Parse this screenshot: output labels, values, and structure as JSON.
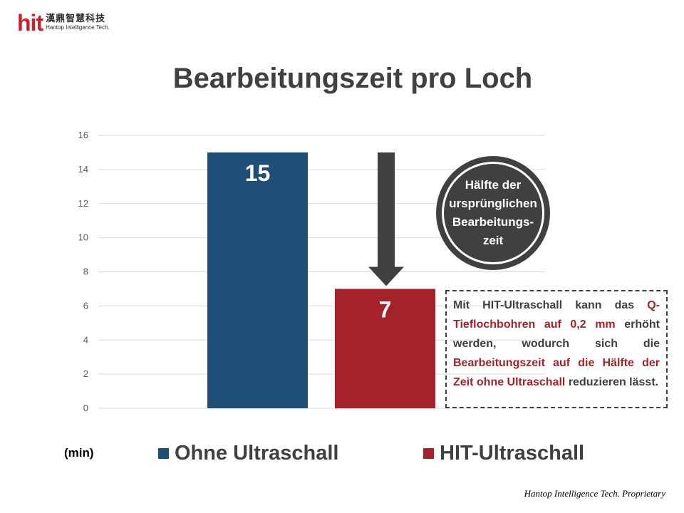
{
  "logo": {
    "mark": "hit",
    "name_cn": "漢鼎智慧科技",
    "name_en": "Hantop Intelligence Tech."
  },
  "title": "Bearbeitungszeit pro Loch",
  "chart_data": {
    "type": "bar",
    "title": "Bearbeitungszeit pro Loch",
    "categories": [
      "Ohne Ultraschall",
      "HIT-Ultraschall"
    ],
    "values": [
      15,
      7
    ],
    "value_labels": [
      "15",
      "7"
    ],
    "colors": [
      "#1f4e79",
      "#a4222a"
    ],
    "ylim": [
      0,
      16
    ],
    "yticks": [
      0,
      2,
      4,
      6,
      8,
      10,
      12,
      14,
      16
    ],
    "ylabel": "(min)",
    "grid": true,
    "legend_position": "bottom"
  },
  "arrow": {
    "from_value": 15,
    "to_value": 7,
    "color": "#404040"
  },
  "callout": {
    "lines": [
      "Hälfte der",
      "ursprünglichen",
      "Bearbeitungs-",
      "zeit"
    ]
  },
  "note": {
    "text1": "Mit HIT-Ultraschall kann das ",
    "highlight1": "Q-Tieflochbohren auf 0,2 mm",
    "text2": " erhöht werden, wodurch sich die ",
    "highlight2": "Bearbeitungszeit auf die Hälfte der Zeit ohne Ultraschall",
    "text3": " reduzieren lässt."
  },
  "legend": {
    "unit": "(min)",
    "items": [
      {
        "label": "Ohne Ultraschall",
        "color": "#1f4e79"
      },
      {
        "label": "HIT-Ultraschall",
        "color": "#a4222a"
      }
    ]
  },
  "footer": "Hantop Intelligence Tech. Proprietary"
}
